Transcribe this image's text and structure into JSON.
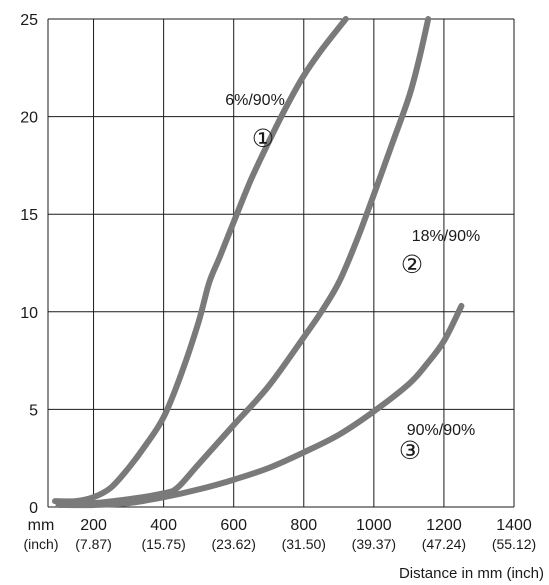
{
  "chart_data": {
    "type": "line",
    "xlabel": "Distance in mm (inch)",
    "ylabel": "",
    "xlim": [
      70,
      1400
    ],
    "ylim": [
      0,
      25
    ],
    "grid": true,
    "x_unit_label": "mm",
    "x_unit_sub_label": "(inch)",
    "x_ticks": [
      200,
      400,
      600,
      800,
      1000,
      1200,
      1400
    ],
    "x_tick_sublabels": [
      "(7.87)",
      "(15.75)",
      "(23.62)",
      "(31.50)",
      "(39.37)",
      "(47.24)",
      "(55.12)"
    ],
    "y_ticks": [
      0,
      5,
      10,
      15,
      20,
      25
    ],
    "series_color": "#7a7a7a",
    "series": [
      {
        "label": "6%/90%",
        "number_glyph": "①",
        "points": [
          [
            90,
            0.3
          ],
          [
            150,
            0.3
          ],
          [
            200,
            0.5
          ],
          [
            250,
            1.0
          ],
          [
            300,
            2.0
          ],
          [
            350,
            3.2
          ],
          [
            400,
            4.6
          ],
          [
            450,
            6.8
          ],
          [
            500,
            9.5
          ],
          [
            530,
            11.5
          ],
          [
            560,
            12.8
          ],
          [
            600,
            14.6
          ],
          [
            650,
            16.8
          ],
          [
            700,
            18.7
          ],
          [
            750,
            20.5
          ],
          [
            800,
            22.1
          ],
          [
            850,
            23.4
          ],
          [
            920,
            25
          ]
        ]
      },
      {
        "label": "18%/90%",
        "number_glyph": "②",
        "points": [
          [
            100,
            0.2
          ],
          [
            200,
            0.2
          ],
          [
            300,
            0.4
          ],
          [
            400,
            0.7
          ],
          [
            440,
            1.0
          ],
          [
            500,
            2.2
          ],
          [
            600,
            4.2
          ],
          [
            700,
            6.2
          ],
          [
            800,
            8.7
          ],
          [
            850,
            10.0
          ],
          [
            900,
            11.5
          ],
          [
            950,
            13.6
          ],
          [
            1000,
            16.0
          ],
          [
            1050,
            18.5
          ],
          [
            1100,
            21.0
          ],
          [
            1130,
            23.0
          ],
          [
            1155,
            25
          ]
        ]
      },
      {
        "label": "90%/90%",
        "number_glyph": "③",
        "points": [
          [
            100,
            0.1
          ],
          [
            200,
            0.1
          ],
          [
            300,
            0.2
          ],
          [
            400,
            0.5
          ],
          [
            500,
            0.9
          ],
          [
            600,
            1.4
          ],
          [
            700,
            2.0
          ],
          [
            800,
            2.8
          ],
          [
            900,
            3.7
          ],
          [
            1000,
            4.9
          ],
          [
            1100,
            6.3
          ],
          [
            1150,
            7.3
          ],
          [
            1200,
            8.5
          ],
          [
            1250,
            10.3
          ]
        ]
      }
    ]
  }
}
